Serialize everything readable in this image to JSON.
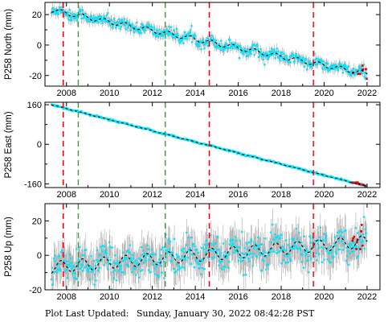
{
  "colors": {
    "data_points": "#00e5ff",
    "error_bars": "#a9a9a9",
    "model_line": "#000000",
    "outliers": "#e00000",
    "event_equipment": "#e8000b",
    "event_other": "#22aa22"
  },
  "footer": {
    "label": "Plot Last Updated:",
    "timestamp": "Sunday, January 30, 2022 08:42:28 PST"
  },
  "chart_data": [
    {
      "type": "scatter",
      "ylabel": "P258 North (mm)",
      "xlim": [
        2007.0,
        2022.6
      ],
      "ylim": [
        -27,
        28
      ],
      "x_ticks": [
        2008,
        2010,
        2012,
        2014,
        2016,
        2018,
        2020,
        2022
      ],
      "y_ticks": [
        -20,
        0,
        20
      ],
      "grid": false,
      "trend": {
        "start_year": 2007.3,
        "start_value": 23,
        "end_year": 2022.0,
        "end_value": -19,
        "annual_amplitude": 1.5,
        "scatter": 1.8,
        "error_bar": 3
      },
      "vlines": [
        {
          "x": 2007.85,
          "kind": "equipment"
        },
        {
          "x": 2008.55,
          "kind": "other"
        },
        {
          "x": 2012.6,
          "kind": "other"
        },
        {
          "x": 2014.65,
          "kind": "equipment"
        },
        {
          "x": 2019.5,
          "kind": "equipment"
        }
      ]
    },
    {
      "type": "scatter",
      "ylabel": "P258 East (mm)",
      "xlim": [
        2007.0,
        2022.6
      ],
      "ylim": [
        -175,
        170
      ],
      "x_ticks": [
        2008,
        2010,
        2012,
        2014,
        2016,
        2018,
        2020,
        2022
      ],
      "y_ticks": [
        -160,
        0,
        160
      ],
      "grid": false,
      "trend": {
        "start_year": 2007.3,
        "start_value": 160,
        "end_year": 2022.0,
        "end_value": -170,
        "annual_amplitude": 1.0,
        "scatter": 2.0,
        "error_bar": 3
      },
      "vlines": [
        {
          "x": 2007.85,
          "kind": "equipment"
        },
        {
          "x": 2008.55,
          "kind": "other"
        },
        {
          "x": 2012.6,
          "kind": "other"
        },
        {
          "x": 2014.65,
          "kind": "equipment"
        },
        {
          "x": 2019.5,
          "kind": "equipment"
        }
      ]
    },
    {
      "type": "scatter",
      "ylabel": "P258 Up (mm)",
      "xlim": [
        2007.0,
        2022.6
      ],
      "ylim": [
        -20,
        30
      ],
      "x_ticks": [
        2008,
        2010,
        2012,
        2014,
        2016,
        2018,
        2020,
        2022
      ],
      "y_ticks": [
        -20,
        0,
        20
      ],
      "grid": false,
      "trend": {
        "start_year": 2007.3,
        "start_value": -7,
        "end_year": 2022.0,
        "end_value": 8,
        "annual_amplitude": 3.5,
        "scatter": 4.5,
        "error_bar": 9
      },
      "vlines": [
        {
          "x": 2007.85,
          "kind": "equipment"
        },
        {
          "x": 2008.55,
          "kind": "other"
        },
        {
          "x": 2012.6,
          "kind": "other"
        },
        {
          "x": 2014.65,
          "kind": "equipment"
        },
        {
          "x": 2019.5,
          "kind": "equipment"
        }
      ]
    }
  ]
}
